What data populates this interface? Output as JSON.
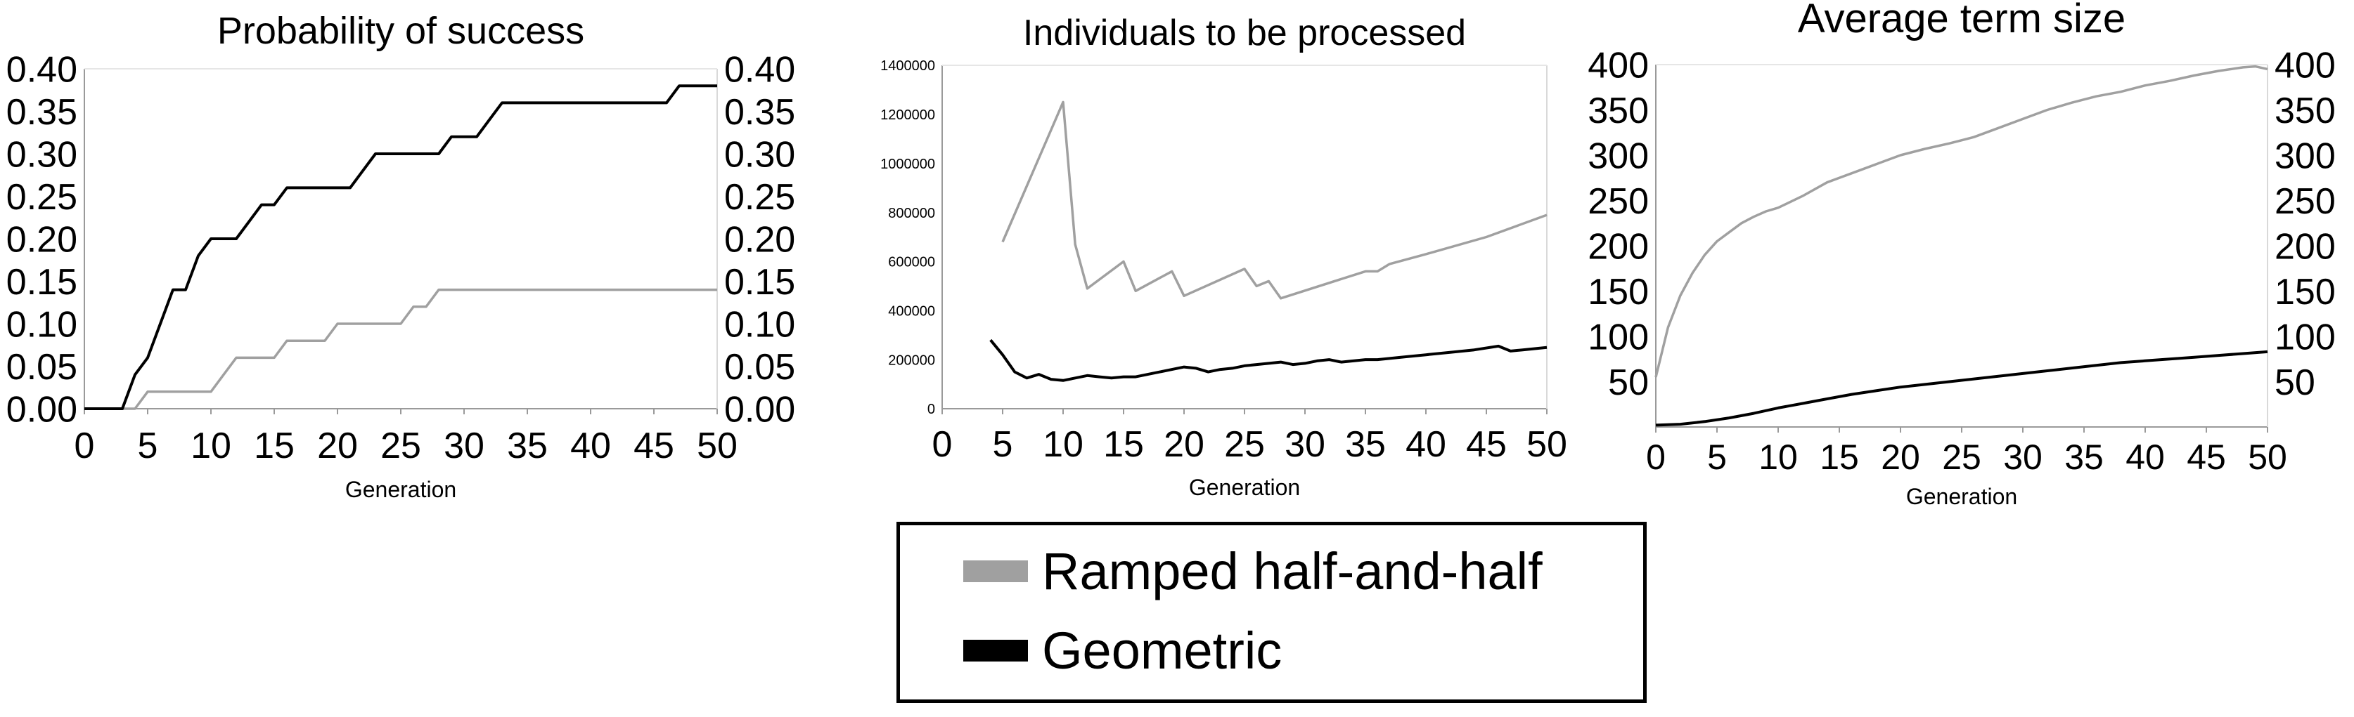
{
  "chart_data": [
    {
      "type": "line",
      "title": "Probability of success",
      "xlabel": "Generation",
      "ylabel": "",
      "xlim": [
        0,
        50
      ],
      "ylim": [
        0,
        0.4
      ],
      "x_ticks": [
        "0",
        "5",
        "10",
        "15",
        "20",
        "25",
        "30",
        "35",
        "40",
        "45",
        "50"
      ],
      "y_ticks": [
        "0.00",
        "0.05",
        "0.10",
        "0.15",
        "0.20",
        "0.25",
        "0.30",
        "0.35",
        "0.40"
      ],
      "right_axis": true,
      "grid": false,
      "series": [
        {
          "name": "Ramped half-and-half",
          "x": [
            0,
            1,
            2,
            3,
            4,
            5,
            6,
            7,
            8,
            9,
            10,
            11,
            12,
            13,
            14,
            15,
            16,
            17,
            18,
            19,
            20,
            21,
            22,
            23,
            24,
            25,
            26,
            27,
            28,
            29,
            30,
            35,
            40,
            45,
            50
          ],
          "values": [
            0,
            0,
            0,
            0,
            0,
            0.02,
            0.02,
            0.02,
            0.02,
            0.02,
            0.02,
            0.04,
            0.06,
            0.06,
            0.06,
            0.06,
            0.08,
            0.08,
            0.08,
            0.08,
            0.1,
            0.1,
            0.1,
            0.1,
            0.1,
            0.1,
            0.12,
            0.12,
            0.14,
            0.14,
            0.14,
            0.14,
            0.14,
            0.14,
            0.14
          ]
        },
        {
          "name": "Geometric",
          "x": [
            0,
            1,
            2,
            3,
            4,
            5,
            6,
            7,
            8,
            9,
            10,
            11,
            12,
            13,
            14,
            15,
            16,
            17,
            18,
            19,
            20,
            21,
            22,
            23,
            24,
            25,
            26,
            27,
            28,
            29,
            30,
            31,
            32,
            33,
            34,
            35,
            40,
            45,
            46,
            47,
            48,
            49,
            50
          ],
          "values": [
            0,
            0,
            0,
            0,
            0.04,
            0.06,
            0.1,
            0.14,
            0.14,
            0.18,
            0.2,
            0.2,
            0.2,
            0.22,
            0.24,
            0.24,
            0.26,
            0.26,
            0.26,
            0.26,
            0.26,
            0.26,
            0.28,
            0.3,
            0.3,
            0.3,
            0.3,
            0.3,
            0.3,
            0.32,
            0.32,
            0.32,
            0.34,
            0.36,
            0.36,
            0.36,
            0.36,
            0.36,
            0.36,
            0.38,
            0.38,
            0.38,
            0.38
          ]
        }
      ]
    },
    {
      "type": "line",
      "title": "Individuals to be processed",
      "xlabel": "Generation",
      "ylabel": "",
      "xlim": [
        0,
        50
      ],
      "ylim": [
        0,
        1400000
      ],
      "x_ticks": [
        "0",
        "5",
        "10",
        "15",
        "20",
        "25",
        "30",
        "35",
        "40",
        "45",
        "50"
      ],
      "y_ticks": [
        "0",
        "200000",
        "400000",
        "600000",
        "800000",
        "1000000",
        "1200000",
        "1400000"
      ],
      "right_axis": false,
      "grid": false,
      "series": [
        {
          "name": "Ramped half-and-half",
          "x": [
            5,
            10,
            11,
            12,
            15,
            16,
            19,
            20,
            25,
            26,
            27,
            28,
            35,
            36,
            37,
            40,
            45,
            50
          ],
          "values": [
            680000,
            1250000,
            670000,
            490000,
            600000,
            480000,
            560000,
            460000,
            570000,
            500000,
            520000,
            450000,
            560000,
            560000,
            590000,
            630000,
            700000,
            790000
          ]
        },
        {
          "name": "Geometric",
          "x": [
            4,
            5,
            6,
            7,
            8,
            9,
            10,
            11,
            12,
            13,
            14,
            15,
            16,
            17,
            18,
            19,
            20,
            21,
            22,
            23,
            24,
            25,
            26,
            27,
            28,
            29,
            30,
            31,
            32,
            33,
            34,
            35,
            36,
            37,
            38,
            40,
            42,
            44,
            46,
            47,
            48,
            50
          ],
          "values": [
            280000,
            220000,
            150000,
            125000,
            140000,
            120000,
            115000,
            125000,
            135000,
            130000,
            125000,
            130000,
            130000,
            140000,
            150000,
            160000,
            170000,
            165000,
            150000,
            160000,
            165000,
            175000,
            180000,
            185000,
            190000,
            180000,
            185000,
            195000,
            200000,
            190000,
            195000,
            200000,
            200000,
            205000,
            210000,
            220000,
            230000,
            240000,
            255000,
            235000,
            240000,
            250000
          ]
        }
      ]
    },
    {
      "type": "line",
      "title": "Average term size",
      "xlabel": "Generation",
      "ylabel": "",
      "xlim": [
        0,
        50
      ],
      "ylim": [
        0,
        400
      ],
      "x_ticks": [
        "0",
        "5",
        "10",
        "15",
        "20",
        "25",
        "30",
        "35",
        "40",
        "45",
        "50"
      ],
      "y_ticks": [
        "50",
        "100",
        "150",
        "200",
        "250",
        "300",
        "350",
        "400"
      ],
      "right_axis": true,
      "grid": false,
      "series": [
        {
          "name": "Ramped half-and-half",
          "x": [
            0,
            1,
            2,
            3,
            4,
            5,
            6,
            7,
            8,
            9,
            10,
            12,
            14,
            16,
            18,
            20,
            22,
            24,
            26,
            28,
            30,
            32,
            34,
            36,
            38,
            40,
            42,
            44,
            46,
            48,
            49,
            50
          ],
          "values": [
            55,
            110,
            145,
            170,
            190,
            205,
            215,
            225,
            232,
            238,
            242,
            255,
            270,
            280,
            290,
            300,
            307,
            313,
            320,
            330,
            340,
            350,
            358,
            365,
            370,
            377,
            382,
            388,
            393,
            397,
            398,
            395
          ]
        },
        {
          "name": "Geometric",
          "x": [
            0,
            2,
            4,
            6,
            8,
            10,
            12,
            14,
            16,
            18,
            20,
            22,
            24,
            26,
            28,
            30,
            32,
            34,
            36,
            38,
            40,
            42,
            44,
            46,
            48,
            50
          ],
          "values": [
            2,
            3,
            6,
            10,
            15,
            21,
            26,
            31,
            36,
            40,
            44,
            47,
            50,
            53,
            56,
            59,
            62,
            65,
            68,
            71,
            73,
            75,
            77,
            79,
            81,
            83
          ]
        }
      ]
    }
  ],
  "legend": {
    "items": [
      {
        "label": "Ramped half-and-half",
        "color": "#a0a0a0"
      },
      {
        "label": "Geometric",
        "color": "#000000"
      }
    ]
  }
}
